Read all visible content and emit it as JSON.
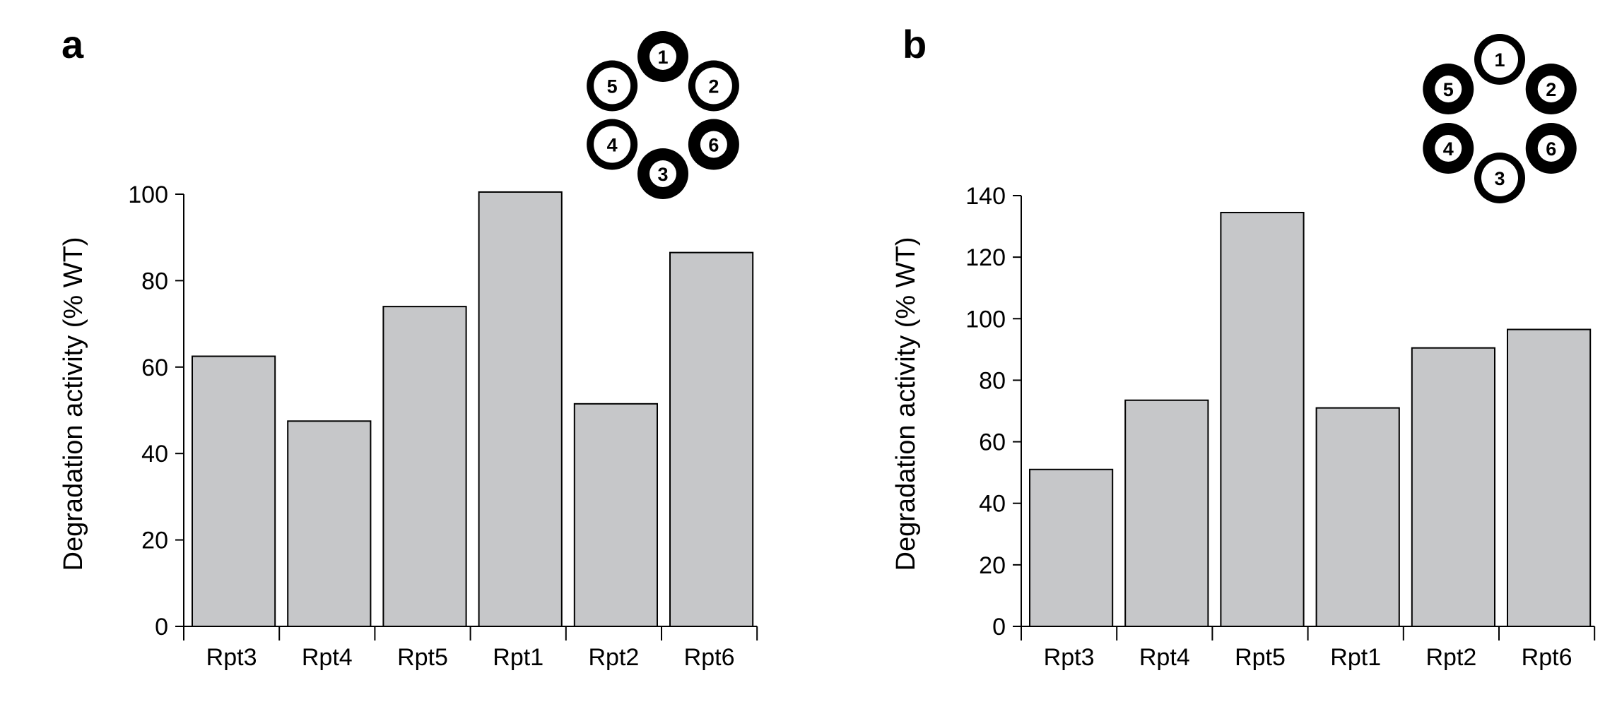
{
  "chart_data": [
    {
      "panel": "a",
      "type": "bar",
      "categories": [
        "Rpt3",
        "Rpt4",
        "Rpt5",
        "Rpt1",
        "Rpt2",
        "Rpt6"
      ],
      "values": [
        62.5,
        47.5,
        74,
        100.5,
        51.5,
        86.5
      ],
      "ylabel": "Degradation activity (% WT)",
      "ylim": [
        0,
        100
      ],
      "yticks": [
        0,
        20,
        40,
        60,
        80,
        100
      ],
      "bar_color": "#c6c7c9",
      "grid": false,
      "ring": [
        {
          "label": "1",
          "highlighted": true
        },
        {
          "label": "2",
          "highlighted": false
        },
        {
          "label": "6",
          "highlighted": true
        },
        {
          "label": "3",
          "highlighted": true
        },
        {
          "label": "4",
          "highlighted": false
        },
        {
          "label": "5",
          "highlighted": false
        }
      ]
    },
    {
      "panel": "b",
      "type": "bar",
      "categories": [
        "Rpt3",
        "Rpt4",
        "Rpt5",
        "Rpt1",
        "Rpt2",
        "Rpt6"
      ],
      "values": [
        51,
        73.5,
        134.5,
        71,
        90.5,
        96.5
      ],
      "ylabel": "Degradation activity (% WT)",
      "ylim": [
        0,
        140
      ],
      "yticks": [
        0,
        20,
        40,
        60,
        80,
        100,
        120,
        140
      ],
      "bar_color": "#c6c7c9",
      "grid": false,
      "ring": [
        {
          "label": "1",
          "highlighted": false
        },
        {
          "label": "2",
          "highlighted": true
        },
        {
          "label": "6",
          "highlighted": true
        },
        {
          "label": "3",
          "highlighted": false
        },
        {
          "label": "4",
          "highlighted": true
        },
        {
          "label": "5",
          "highlighted": true
        }
      ]
    }
  ]
}
